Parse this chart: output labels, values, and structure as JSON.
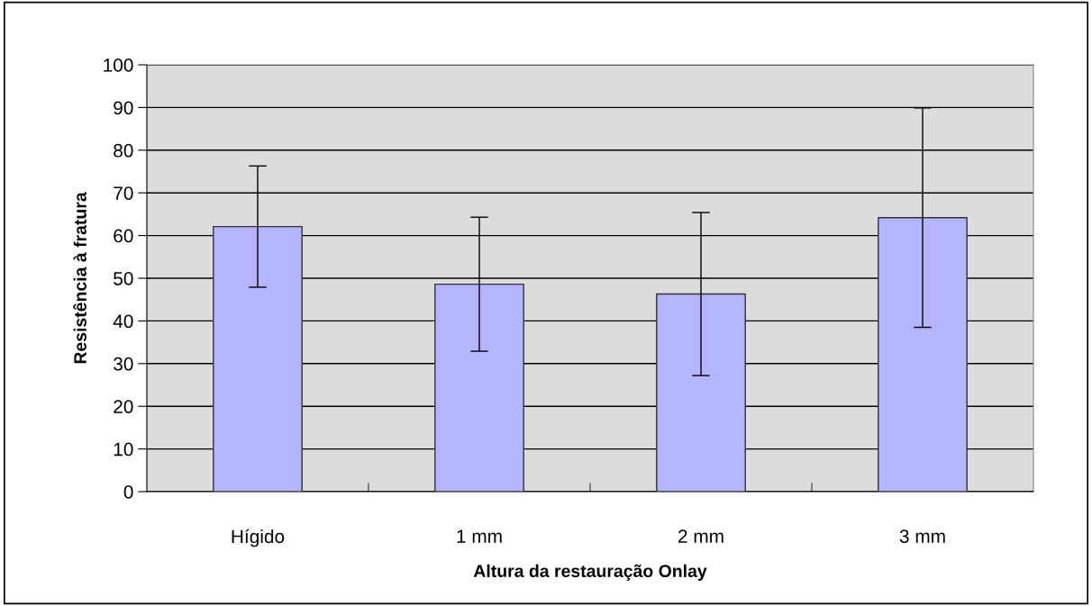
{
  "chart_data": {
    "type": "bar",
    "categories": [
      "Hígido",
      "1 mm",
      "2 mm",
      "3 mm"
    ],
    "values": [
      62.1,
      48.6,
      46.3,
      64.2
    ],
    "errors": [
      14.2,
      15.7,
      19.1,
      25.7
    ],
    "color": "#b4b4ff",
    "xlabel": "Altura da restauração Onlay",
    "ylabel": "Resistência à fratura",
    "ylim": [
      0,
      100
    ],
    "yticks": [
      0,
      10,
      20,
      30,
      40,
      50,
      60,
      70,
      80,
      90,
      100
    ],
    "grid": "y",
    "legend": false
  }
}
